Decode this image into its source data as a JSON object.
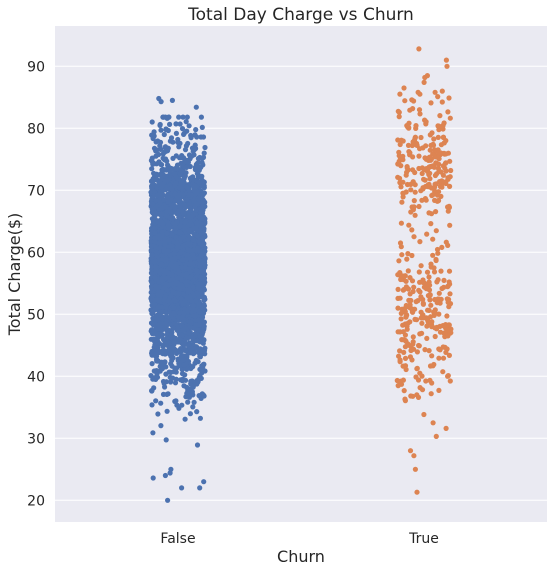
{
  "chart_data": {
    "type": "scatter",
    "subtype": "strip",
    "title": "Total Day Charge vs Churn",
    "xlabel": "Churn",
    "ylabel": "Total Charge($)",
    "categories": [
      "False",
      "True"
    ],
    "ylim": [
      16.5,
      96.5
    ],
    "yticks": [
      20,
      30,
      40,
      50,
      60,
      70,
      80,
      90
    ],
    "grid": true,
    "background": "#eaeaf2",
    "grid_color": "#ffffff",
    "series": [
      {
        "category": "False",
        "color": "#4c72b0",
        "distribution": {
          "count": 2850,
          "mean": 58.5,
          "sd": 9.2,
          "min": 20.0,
          "max": 84.8
        },
        "extreme_points": [
          84.8,
          84.5,
          84.3,
          83.4,
          80.7,
          80.4,
          79.0,
          78.6,
          78.5,
          78.2,
          77.8,
          77.2,
          76.9,
          76.5,
          75.7,
          25.0,
          24.4,
          24.0,
          23.6,
          20.0
        ]
      },
      {
        "category": "True",
        "color": "#dd8452",
        "distribution": {
          "count": 483,
          "clusters": [
            {
              "mean": 73.8,
              "sd": 4.2,
              "weight": 0.45
            },
            {
              "mean": 50.5,
              "sd": 5.5,
              "weight": 0.55
            }
          ],
          "min": 21.3,
          "max": 92.8
        },
        "extreme_points": [
          92.8,
          91.0,
          90.0,
          88.5,
          88.2,
          87.4,
          86.5,
          86.0,
          85.8,
          85.5,
          84.6,
          84.4,
          84.1,
          32.5,
          31.6,
          30.3,
          28.0,
          27.2,
          25.0,
          21.3
        ]
      }
    ]
  }
}
